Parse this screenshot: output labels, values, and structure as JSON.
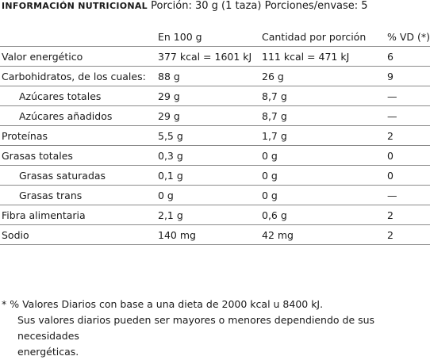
{
  "header": {
    "brand": "INFORMACIÓN NUTRICIONAL",
    "serving": "Porción: 30 g (1 taza) Porciones/envase: 5"
  },
  "columns": {
    "name": "",
    "per100": "En 100 g",
    "portion": "Cantidad por porción",
    "vd": "% VD (*)"
  },
  "rows": [
    {
      "name": "Valor energético",
      "per100": "377 kcal = 1601 kJ",
      "portion": "111 kcal = 471 kJ",
      "vd": "6"
    },
    {
      "name": "Carbohidratos, de los cuales:",
      "per100": "88 g",
      "portion": "26 g",
      "vd": "9"
    },
    {
      "name": "Azúcares totales",
      "per100": "29 g",
      "portion": "8,7 g",
      "vd": "—"
    },
    {
      "name": "Azúcares añadidos",
      "per100": "29 g",
      "portion": "8,7 g",
      "vd": "—"
    },
    {
      "name": "Proteínas",
      "per100": "5,5 g",
      "portion": "1,7 g",
      "vd": "2"
    },
    {
      "name": "Grasas totales",
      "per100": "0,3 g",
      "portion": "0 g",
      "vd": "0"
    },
    {
      "name": "Grasas saturadas",
      "per100": "0,1 g",
      "portion": "0 g",
      "vd": "0"
    },
    {
      "name": "Grasas trans",
      "per100": "0 g",
      "portion": "0 g",
      "vd": "—"
    },
    {
      "name": "Fibra alimentaria",
      "per100": "2,1 g",
      "portion": "0,6 g",
      "vd": "2"
    },
    {
      "name": "Sodio",
      "per100": "140 mg",
      "portion": "42 mg",
      "vd": "2"
    }
  ],
  "footnote": {
    "line1": "* % Valores Diarios con base a una dieta de 2000 kcal u 8400 kJ.",
    "line2": "Sus valores diarios pueden ser mayores o menores dependiendo de sus necesidades",
    "line3": "energéticas."
  }
}
